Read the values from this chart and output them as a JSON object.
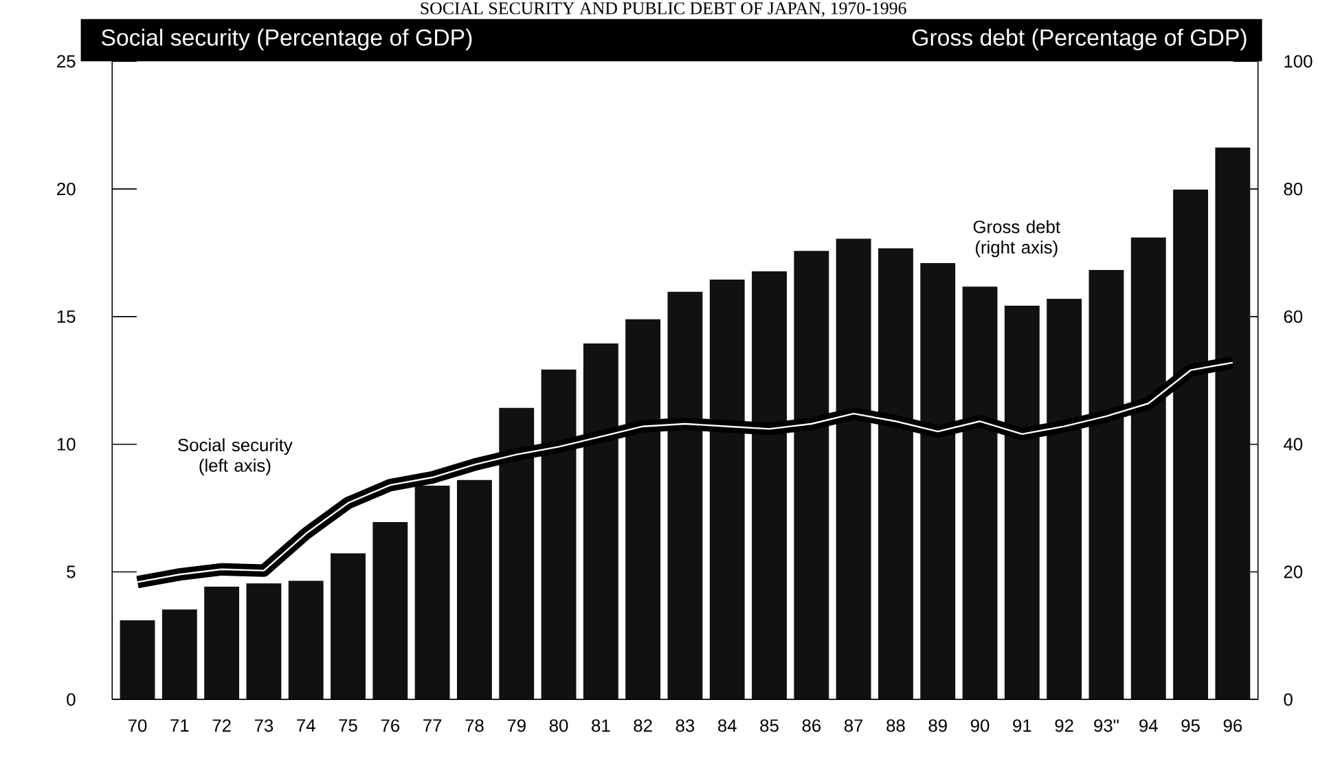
{
  "chart_data": {
    "type": "bar",
    "title": "SOCIAL SECURITY AND PUBLIC DEBT OF JAPAN, 1970-1996",
    "ylabel": "Social security (Percentage of GDP)",
    "y2label": "Gross debt (Percentage of GDP)",
    "annotations": [
      "Social security (left axis)",
      "Gross debt (right axis)"
    ],
    "categories": [
      "70",
      "71",
      "72",
      "73",
      "74",
      "75",
      "76",
      "77",
      "78",
      "79",
      "80",
      "81",
      "82",
      "83",
      "84",
      "85",
      "86",
      "87",
      "88",
      "89",
      "90",
      "91",
      "92",
      "93\"",
      "94",
      "95",
      "96"
    ],
    "series": [
      {
        "axis": "y2",
        "color": "#111111",
        "values": [
          12.4,
          14.1,
          17.7,
          18.2,
          18.6,
          22.9,
          27.8,
          33.5,
          34.4,
          45.7,
          51.7,
          55.8,
          59.6,
          63.9,
          65.8,
          67.1,
          70.3,
          72.2,
          70.7,
          68.4,
          64.7,
          61.7,
          62.8,
          67.3,
          72.4,
          79.9,
          86.5
        ]
      },
      {
        "type": "line",
        "color": "#000000",
        "values": [
          4.6,
          4.9,
          5.1,
          5.05,
          6.5,
          7.7,
          8.4,
          8.7,
          9.2,
          9.6,
          9.9,
          10.3,
          10.7,
          10.8,
          10.7,
          10.6,
          10.8,
          11.2,
          10.9,
          10.5,
          10.9,
          10.4,
          10.7,
          11.1,
          11.6,
          12.9,
          13.2
        ]
      }
    ],
    "ylim": [
      0,
      25
    ],
    "yticks": [
      0,
      5,
      10,
      15,
      20,
      25
    ],
    "y2lim": [
      0,
      100
    ],
    "y2ticks": [
      0,
      20,
      40,
      60,
      80,
      100
    ]
  }
}
